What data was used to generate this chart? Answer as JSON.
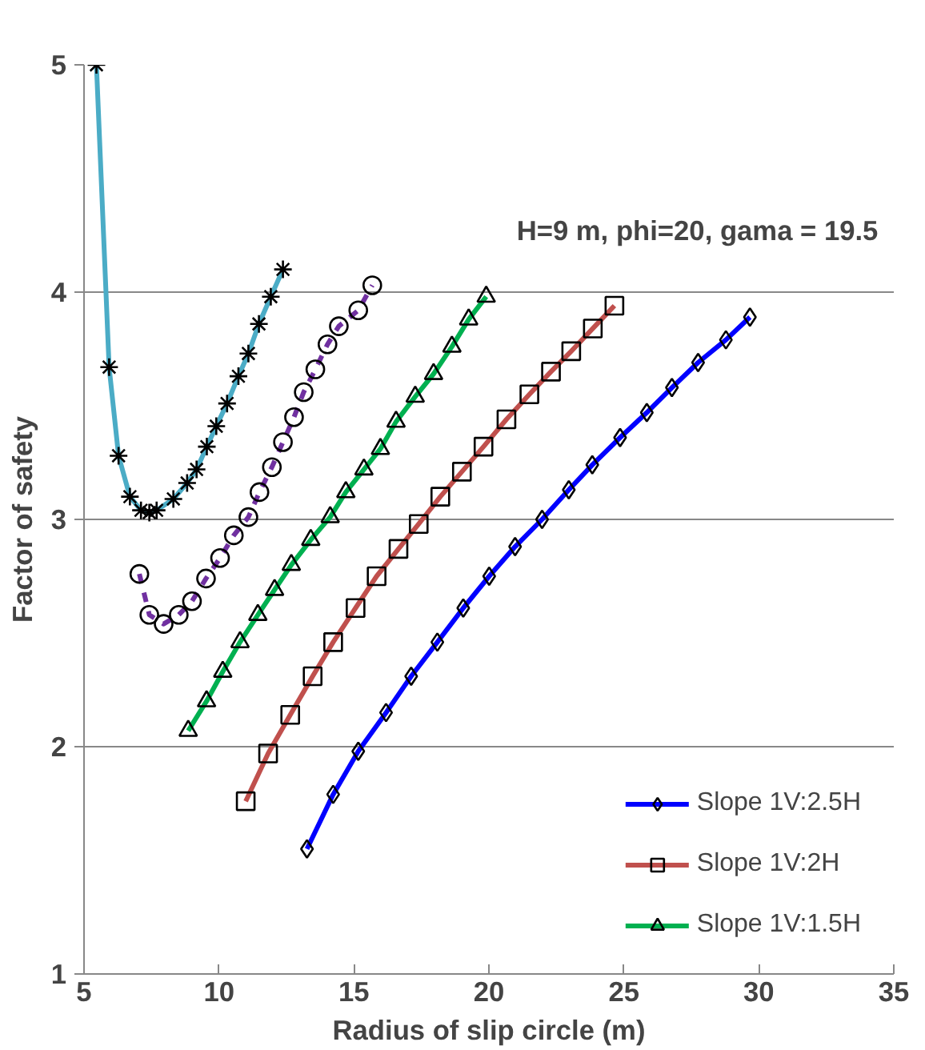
{
  "chart_data": {
    "type": "line",
    "xlabel": "Radius of slip circle (m)",
    "ylabel": "Factor of safety",
    "annotations": [
      "H=9 m,  phi=20, gama = 19.5"
    ],
    "xlim": [
      5,
      35
    ],
    "xticks": [
      5,
      10,
      15,
      20,
      25,
      30,
      35
    ],
    "ylim": [
      1,
      5
    ],
    "yticks": [
      1,
      2,
      3,
      4,
      5
    ],
    "grid": "y",
    "legend": "right",
    "line_style": "solid",
    "series": [
      {
        "name": "Slope 1V:2.5H",
        "color": "#0000ff",
        "marker": "diamond",
        "x": [
          13.26,
          14.23,
          15.16,
          16.19,
          17.12,
          18.09,
          19.05,
          20.01,
          20.97,
          21.97,
          22.96,
          23.83,
          24.86,
          25.85,
          26.78,
          27.75,
          28.78,
          29.67
        ],
        "values": [
          1.55,
          1.79,
          1.98,
          2.15,
          2.31,
          2.46,
          2.61,
          2.75,
          2.88,
          3.0,
          3.13,
          3.24,
          3.36,
          3.47,
          3.58,
          3.69,
          3.79,
          3.89
        ]
      },
      {
        "name": "Slope 1V:2H",
        "color": "#c0504d",
        "marker": "square",
        "x": [
          10.99,
          11.82,
          12.64,
          13.47,
          14.23,
          15.06,
          15.84,
          16.65,
          17.4,
          18.2,
          19.0,
          19.8,
          20.65,
          21.5,
          22.3,
          23.05,
          23.85,
          24.65
        ],
        "values": [
          1.76,
          1.97,
          2.14,
          2.31,
          2.46,
          2.61,
          2.75,
          2.87,
          2.98,
          3.1,
          3.21,
          3.32,
          3.44,
          3.55,
          3.65,
          3.74,
          3.84,
          3.94
        ]
      },
      {
        "name": "Slope 1V:1.5H",
        "color": "#00b050",
        "marker": "triangle",
        "x": [
          8.86,
          9.54,
          10.14,
          10.78,
          11.44,
          12.06,
          12.68,
          13.4,
          14.12,
          14.7,
          15.37,
          15.98,
          16.56,
          17.27,
          17.95,
          18.63,
          19.25,
          19.9
        ],
        "values": [
          2.07,
          2.2,
          2.33,
          2.46,
          2.58,
          2.69,
          2.8,
          2.91,
          3.01,
          3.12,
          3.22,
          3.31,
          3.43,
          3.54,
          3.64,
          3.76,
          3.88,
          3.98
        ]
      },
      {
        "color": "#7030a0",
        "marker": "circle",
        "line_style": "dashed",
        "x": [
          7.05,
          7.42,
          7.95,
          8.51,
          9.0,
          9.52,
          10.04,
          10.55,
          11.09,
          11.5,
          11.96,
          12.37,
          12.78,
          13.14,
          13.57,
          14.02,
          14.44,
          15.16,
          15.68
        ],
        "values": [
          2.76,
          2.58,
          2.54,
          2.58,
          2.64,
          2.74,
          2.83,
          2.93,
          3.01,
          3.12,
          3.23,
          3.34,
          3.45,
          3.56,
          3.66,
          3.77,
          3.85,
          3.92,
          4.03
        ]
      },
      {
        "color": "#4bacc6",
        "marker": "cross",
        "x": [
          5.46,
          5.93,
          6.28,
          6.7,
          7.11,
          7.42,
          7.69,
          8.31,
          8.82,
          9.17,
          9.55,
          9.9,
          10.3,
          10.72,
          11.09,
          11.48,
          11.92,
          12.37
        ],
        "values": [
          5.0,
          3.67,
          3.28,
          3.1,
          3.04,
          3.03,
          3.04,
          3.09,
          3.16,
          3.22,
          3.32,
          3.41,
          3.51,
          3.63,
          3.73,
          3.86,
          3.98,
          4.1
        ]
      }
    ]
  }
}
